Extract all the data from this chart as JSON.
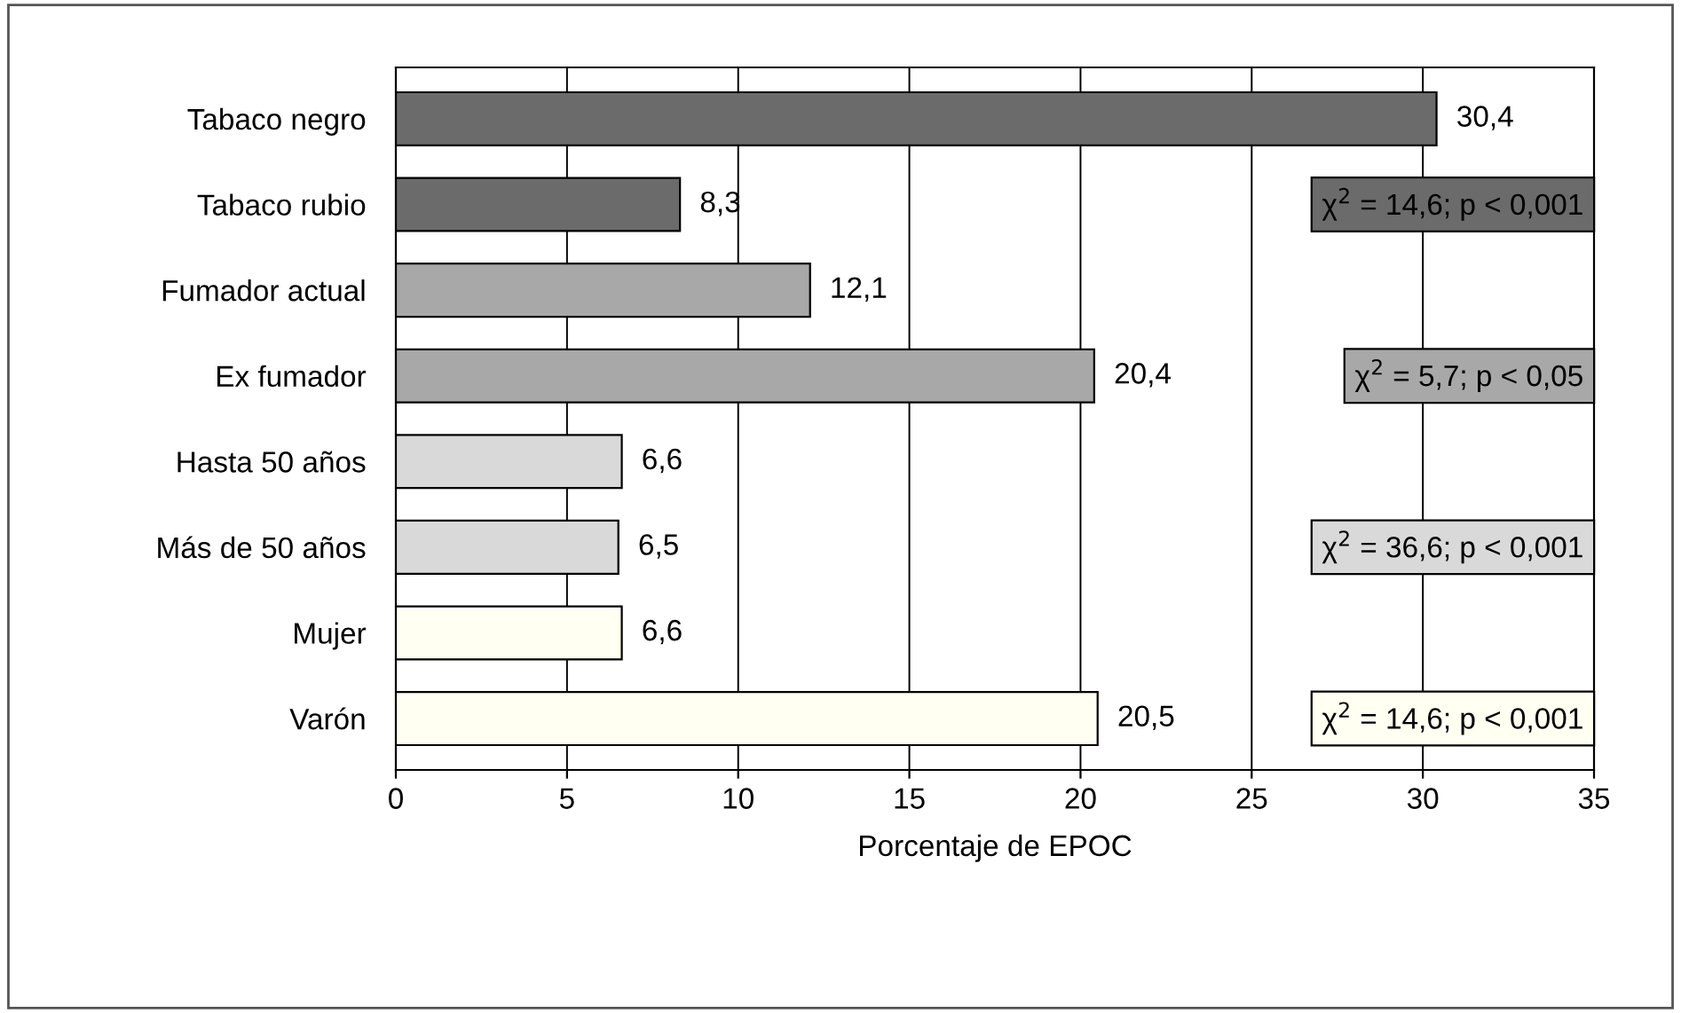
{
  "chart_data": {
    "type": "bar",
    "orientation": "horizontal",
    "xlabel": "Porcentaje de EPOC",
    "categories": [
      "Tabaco negro",
      "Tabaco rubio",
      "Fumador actual",
      "Ex fumador",
      "Hasta 50 años",
      "Más de 50 años",
      "Mujer",
      "Varón"
    ],
    "values": [
      30.4,
      8.3,
      12.1,
      20.4,
      6.6,
      6.5,
      6.6,
      20.5
    ],
    "value_labels": [
      "30,4",
      "8,3",
      "12,1",
      "20,4",
      "6,6",
      "6,5",
      "6,6",
      "20,5"
    ],
    "colors": [
      "#6b6b6b",
      "#6b6b6b",
      "#a8a8a8",
      "#a8a8a8",
      "#d9d9d9",
      "#d9d9d9",
      "#fffff2",
      "#fffff2"
    ],
    "xlim": [
      0,
      35
    ],
    "xticks": [
      0,
      5,
      10,
      15,
      20,
      25,
      30,
      35
    ],
    "grid": "x",
    "annotations": [
      "χ$^{2}$ = 14,6; p < 0,001",
      "χ$^{2}$ = 5,7; p < 0,05",
      "χ$^{2}$ = 36,6; p < 0,001",
      "χ$^{2}$ = 14,6; p < 0,001"
    ]
  }
}
